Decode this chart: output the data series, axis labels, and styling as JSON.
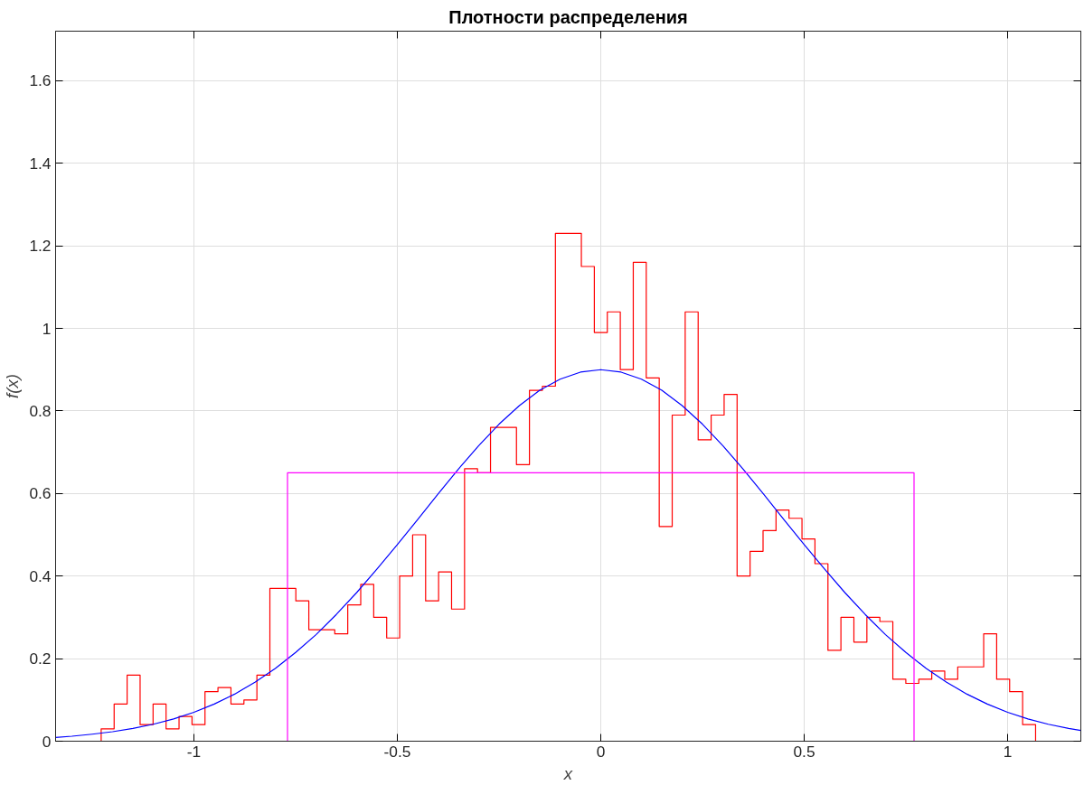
{
  "chart_data": {
    "type": "histogram",
    "title": "Плотности распределения",
    "xlabel": "x",
    "ylabel": "f(x)",
    "bins": [
      -1.228,
      -1.1961,
      -1.1642,
      -1.1323,
      -1.1004,
      -1.0685,
      -1.0366,
      -1.0047,
      -0.9728,
      -0.9409,
      -0.909,
      -0.8771,
      -0.8452,
      -0.8133,
      -0.7814,
      -0.7495,
      -0.7176,
      -0.6857,
      -0.6538,
      -0.6219,
      -0.59,
      -0.5581,
      -0.5262,
      -0.4943,
      -0.4624,
      -0.4305,
      -0.3986,
      -0.3667,
      -0.3348,
      -0.3029,
      -0.271,
      -0.2391,
      -0.2072,
      -0.1753,
      -0.1434,
      -0.1115,
      -0.0796,
      -0.0477,
      -0.0158,
      0.0161,
      0.048,
      0.0799,
      0.1118,
      0.1437,
      0.1756,
      0.2075,
      0.2394,
      0.2713,
      0.3032,
      0.3351,
      0.367,
      0.3989,
      0.4308,
      0.4627,
      0.4946,
      0.5265,
      0.5584,
      0.5903,
      0.6222,
      0.6541,
      0.686,
      0.7179,
      0.7498,
      0.7817,
      0.8136,
      0.8455,
      0.8774,
      0.9093,
      0.9412,
      0.9731,
      1.005,
      1.0369,
      1.0688
    ],
    "values": [
      0.03,
      0.09,
      0.16,
      0.04,
      0.09,
      0.03,
      0.06,
      0.04,
      0.12,
      0.13,
      0.09,
      0.1,
      0.16,
      0.37,
      0.37,
      0.34,
      0.27,
      0.27,
      0.26,
      0.33,
      0.38,
      0.3,
      0.25,
      0.4,
      0.5,
      0.34,
      0.41,
      0.32,
      0.66,
      0.65,
      0.76,
      0.76,
      0.67,
      0.85,
      0.86,
      1.23,
      1.23,
      1.15,
      0.99,
      1.04,
      0.9,
      1.16,
      0.88,
      0.52,
      0.79,
      1.04,
      0.73,
      0.79,
      0.84,
      0.4,
      0.46,
      0.51,
      0.56,
      0.54,
      0.49,
      0.43,
      0.22,
      0.3,
      0.24,
      0.3,
      0.29,
      0.15,
      0.14,
      0.15,
      0.17,
      0.15,
      0.18,
      0.18,
      0.26,
      0.15,
      0.12,
      0.04
    ],
    "color": "#ff0000",
    "series": [
      {
        "type": "line",
        "color": "#0000ff",
        "x": [
          -1.34,
          -1.3,
          -1.25,
          -1.2,
          -1.15,
          -1.1,
          -1.05,
          -1.0,
          -0.95,
          -0.9,
          -0.85,
          -0.8,
          -0.75,
          -0.7,
          -0.65,
          -0.6,
          -0.55,
          -0.5,
          -0.45,
          -0.4,
          -0.35,
          -0.3,
          -0.25,
          -0.2,
          -0.15,
          -0.1,
          -0.05,
          0,
          0.05,
          0.1,
          0.15,
          0.2,
          0.25,
          0.3,
          0.35,
          0.4,
          0.45,
          0.5,
          0.55,
          0.6,
          0.65,
          0.7,
          0.75,
          0.8,
          0.85,
          0.9,
          0.95,
          1.0,
          1.05,
          1.1,
          1.15,
          1.18
        ],
        "values": [
          0.009,
          0.012,
          0.017,
          0.023,
          0.031,
          0.041,
          0.054,
          0.07,
          0.09,
          0.114,
          0.143,
          0.176,
          0.215,
          0.258,
          0.307,
          0.36,
          0.417,
          0.476,
          0.537,
          0.599,
          0.659,
          0.716,
          0.768,
          0.813,
          0.85,
          0.877,
          0.894,
          0.9,
          0.894,
          0.877,
          0.85,
          0.813,
          0.768,
          0.716,
          0.659,
          0.599,
          0.537,
          0.476,
          0.417,
          0.36,
          0.307,
          0.258,
          0.215,
          0.176,
          0.143,
          0.114,
          0.09,
          0.07,
          0.054,
          0.041,
          0.031,
          0.026
        ]
      },
      {
        "type": "line",
        "color": "#ff00ff",
        "x": [
          -0.77,
          -0.77,
          0.77,
          0.77
        ],
        "values": [
          0,
          0.65,
          0.65,
          0
        ]
      }
    ],
    "xlim": [
      -1.34,
      1.18
    ],
    "ylim": [
      0,
      1.72
    ],
    "xticks": [
      -1,
      -0.5,
      0,
      0.5,
      1
    ],
    "yticks": [
      0,
      0.2,
      0.4,
      0.6,
      0.8,
      1,
      1.2,
      1.4,
      1.6
    ],
    "grid": true
  }
}
